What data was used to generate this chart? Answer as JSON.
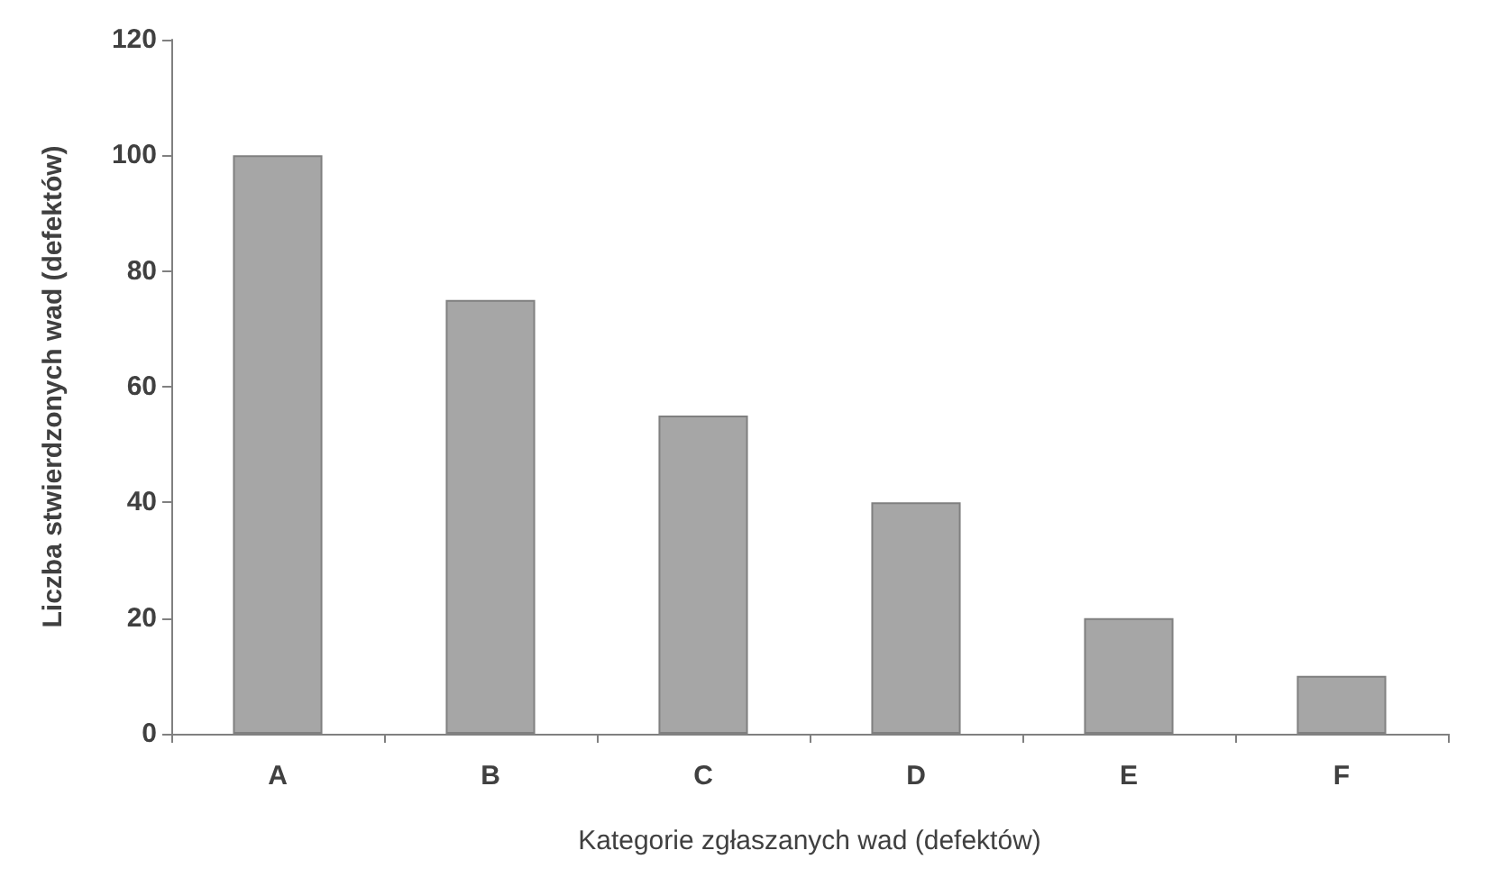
{
  "chart_data": {
    "type": "bar",
    "xlabel": "Kategorie zgłaszanych wad (defektów)",
    "ylabel": "Liczba stwierdzonych wad (defektów)",
    "categories": [
      "A",
      "B",
      "C",
      "D",
      "E",
      "F"
    ],
    "values": [
      100,
      75,
      55,
      40,
      20,
      10
    ],
    "color": "#a6a6a6",
    "ylim": [
      0,
      120
    ],
    "yticks": [
      0,
      20,
      40,
      60,
      80,
      100,
      120
    ],
    "grid": false
  }
}
